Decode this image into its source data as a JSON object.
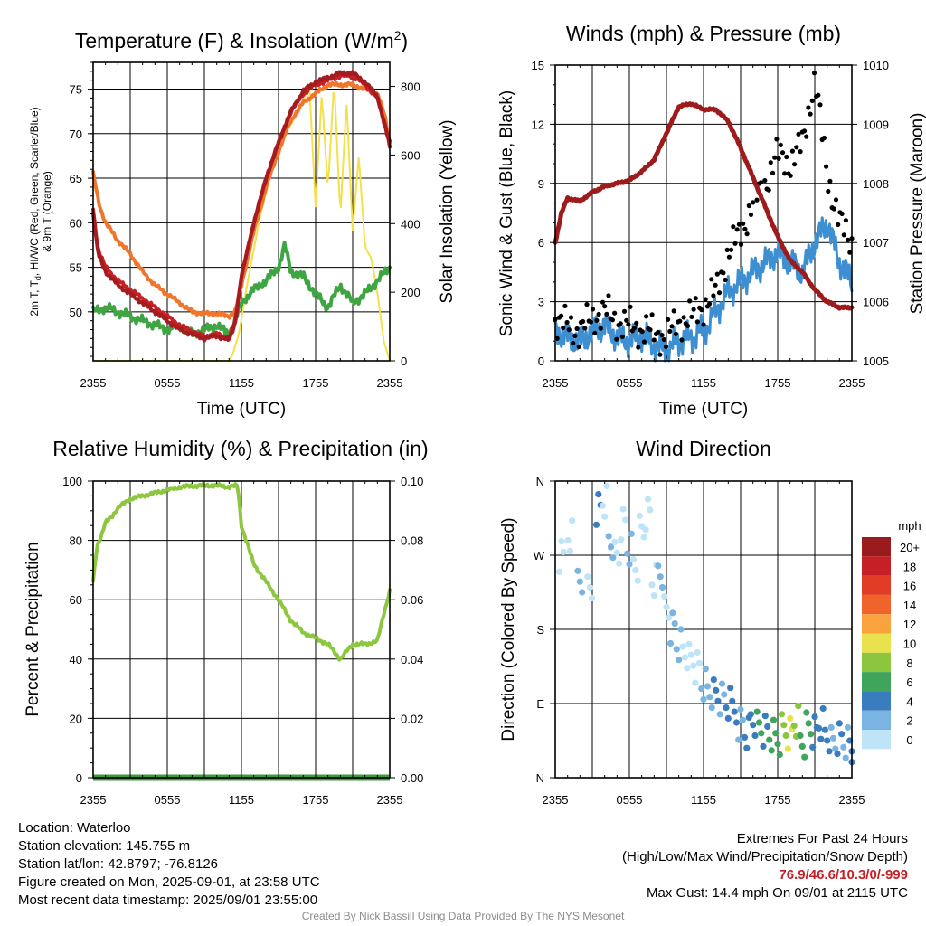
{
  "panels": {
    "temperature": {
      "title_main": "Temperature (F) & Insolation (W/m",
      "title_sup": "2",
      "title_end": ")",
      "y_left_label_line1": "2m T, T",
      "y_left_label_sub": "d",
      "y_left_label_line1b": ", HI/WC (Red, Green, Scarlet/Blue)",
      "y_left_label_line2": "& 9m T (Orange)",
      "y_right_label": "Solar Insolation (Yellow)",
      "x_label": "Time (UTC)"
    },
    "winds": {
      "title": "Winds (mph) & Pressure (mb)",
      "y_left_label": "Sonic Wind & Gust (Blue, Black)",
      "y_right_label": "Station Pressure (Maroon)",
      "x_label": "Time (UTC)"
    },
    "humidity": {
      "title": "Relative Humidity (%) & Precipitation (in)",
      "y_left_label": "Percent & Precipitation"
    },
    "direction": {
      "title": "Wind Direction",
      "y_left_label": "Direction (Colored By Speed)",
      "legend_unit": "mph",
      "legend_labels": [
        "20+",
        "18",
        "16",
        "14",
        "12",
        "10",
        "8",
        "6",
        "4",
        "2",
        "0"
      ],
      "legend_colors": [
        "#9a1b1e",
        "#c42026",
        "#e03c26",
        "#f0642c",
        "#f8a33d",
        "#e9e24e",
        "#8cc63f",
        "#3fa55b",
        "#3a7dbf",
        "#79b4e2",
        "#bfe3f7"
      ]
    }
  },
  "chart_data": [
    {
      "type": "line",
      "title": "Temperature (F) & Insolation (W/m2)",
      "xlabel": "Time (UTC)",
      "ylabel": "2m T, Td, HI/WC (Red, Green, Scarlet/Blue) & 9m T (Orange)",
      "y2label": "Solar Insolation (Yellow)",
      "x_ticks": [
        "2355",
        "0555",
        "1155",
        "1755",
        "2355"
      ],
      "x_hours": [
        0,
        24
      ],
      "ylim": [
        44.5,
        78
      ],
      "y_ticks": [
        50,
        55,
        60,
        65,
        70,
        75
      ],
      "y2lim": [
        0,
        870
      ],
      "y2_ticks": [
        0,
        200,
        400,
        600,
        800
      ],
      "series": [
        {
          "name": "2m T",
          "color": "#c42026",
          "axis": "left",
          "x": [
            0,
            0.4,
            1,
            2,
            3,
            4,
            5,
            6,
            7,
            8,
            9,
            10,
            11,
            11.5,
            12,
            13,
            14,
            15,
            16,
            17,
            18,
            19,
            20,
            21,
            22,
            23,
            23.6,
            24
          ],
          "values": [
            61.5,
            57,
            55,
            53.5,
            52.5,
            51.5,
            50.5,
            49.5,
            48.5,
            47.8,
            47.2,
            47.5,
            47,
            49,
            54,
            60,
            65,
            69,
            72.5,
            74.5,
            75.5,
            76,
            76.5,
            76.5,
            75.5,
            74,
            71,
            69
          ]
        },
        {
          "name": "9m T",
          "color": "#f0762c",
          "axis": "left",
          "x": [
            0,
            0.5,
            1,
            2,
            3,
            4,
            5,
            6,
            7,
            8,
            9,
            10,
            11,
            11.5,
            12,
            13,
            14,
            15,
            16,
            17,
            18,
            19,
            20,
            21,
            22,
            23,
            23.6,
            24
          ],
          "values": [
            65.5,
            62,
            60,
            58,
            56.5,
            54.5,
            53,
            52,
            51,
            50,
            49.8,
            49.8,
            49.5,
            50,
            53,
            59,
            64,
            68,
            71.5,
            73.5,
            74.5,
            75.5,
            75.5,
            75.5,
            75,
            74.5,
            72,
            69
          ]
        },
        {
          "name": "HI/WC",
          "color": "#a51c20",
          "axis": "left",
          "x": [
            0,
            0.4,
            1,
            2,
            3,
            4,
            5,
            6,
            7,
            8,
            9,
            10,
            11,
            11.5,
            12,
            13,
            14,
            15,
            16,
            17,
            18,
            19,
            20,
            21,
            22,
            23,
            23.6,
            24
          ],
          "values": [
            61,
            56.5,
            54.5,
            53,
            52,
            51,
            50,
            49,
            48,
            47.5,
            47,
            47.3,
            46.8,
            48.8,
            54,
            60,
            65,
            69,
            72.5,
            74.8,
            75.8,
            76.3,
            76.8,
            76.8,
            75.8,
            74.2,
            71,
            68.5
          ]
        },
        {
          "name": "2m Td",
          "color": "#3fa542",
          "axis": "left",
          "x": [
            0,
            1,
            2,
            3,
            4,
            5,
            6,
            7,
            8,
            9,
            10,
            11,
            11.5,
            12,
            13,
            14,
            15,
            15.5,
            16,
            17,
            18,
            19,
            20,
            21,
            22,
            23,
            24
          ],
          "values": [
            50,
            50.5,
            50,
            49.5,
            49,
            48.5,
            48,
            48.5,
            47.5,
            48,
            48.5,
            47.5,
            49,
            51,
            52.5,
            53.5,
            55,
            57.5,
            54.5,
            54,
            52,
            50.5,
            53,
            51,
            52,
            53.5,
            55
          ]
        },
        {
          "name": "Solar Insolation",
          "color": "#f3e04b",
          "axis": "right",
          "x": [
            0,
            11,
            11.3,
            11.8,
            12.5,
            13.5,
            14.5,
            15.5,
            16.5,
            17.5,
            18,
            18.5,
            19,
            19.5,
            20,
            20.5,
            21,
            21.5,
            22,
            22.5,
            23,
            23.5,
            24
          ],
          "values": [
            0,
            0,
            20,
            80,
            230,
            420,
            560,
            660,
            720,
            800,
            450,
            780,
            500,
            820,
            420,
            760,
            380,
            600,
            330,
            300,
            200,
            60,
            0
          ]
        }
      ]
    },
    {
      "type": "line",
      "title": "Winds (mph) & Pressure (mb)",
      "xlabel": "Time (UTC)",
      "ylabel": "Sonic Wind & Gust (Blue, Black)",
      "y2label": "Station Pressure (Maroon)",
      "x_ticks": [
        "2355",
        "0555",
        "1155",
        "1755",
        "2355"
      ],
      "x_hours": [
        0,
        24
      ],
      "ylim": [
        0,
        15
      ],
      "y_ticks": [
        0,
        3,
        6,
        9,
        12,
        15
      ],
      "y2lim": [
        1005,
        1010
      ],
      "y2_ticks": [
        1005,
        1006,
        1007,
        1008,
        1009,
        1010
      ],
      "series": [
        {
          "name": "Sonic Wind",
          "color": "#3d8fd1",
          "axis": "left",
          "x": [
            0,
            1,
            2,
            3,
            4,
            5,
            6,
            7,
            8,
            9,
            10,
            11,
            12,
            13,
            14,
            15,
            16,
            17,
            18,
            19,
            20,
            21,
            22,
            23,
            24
          ],
          "values": [
            1.5,
            1.2,
            1.0,
            1.5,
            1.8,
            1.2,
            1.0,
            1.3,
            0.8,
            0.5,
            1.0,
            1.2,
            1.5,
            2.5,
            3.5,
            4.0,
            4.5,
            5.0,
            5.5,
            5.0,
            4.5,
            6.0,
            7.0,
            5.0,
            4.0
          ]
        },
        {
          "name": "Gust",
          "color": "#000000",
          "axis": "left",
          "x": [
            0,
            1,
            2,
            3,
            4,
            5,
            6,
            7,
            8,
            9,
            10,
            11,
            12,
            13,
            14,
            15,
            16,
            17,
            18,
            19,
            20,
            21,
            22,
            23,
            24
          ],
          "values": [
            2.0,
            1.8,
            1.5,
            2.2,
            2.5,
            2.0,
            1.8,
            1.6,
            1.4,
            1.2,
            2.0,
            2.2,
            2.8,
            3.5,
            5.5,
            6.5,
            8.0,
            9.0,
            10.5,
            10.0,
            11.0,
            14.4,
            9.5,
            7.0,
            6.0
          ]
        },
        {
          "name": "Station Pressure",
          "color": "#9e1b1b",
          "axis": "right",
          "x": [
            0,
            0.5,
            1,
            2,
            3,
            4,
            5,
            6,
            7,
            8,
            9,
            10,
            11,
            12,
            13,
            14,
            15,
            16,
            17,
            18,
            19,
            20,
            21,
            22,
            23,
            24
          ],
          "values": [
            1007.0,
            1007.5,
            1007.75,
            1007.7,
            1007.85,
            1007.95,
            1008.0,
            1008.05,
            1008.2,
            1008.4,
            1008.85,
            1009.3,
            1009.35,
            1009.25,
            1009.25,
            1009.05,
            1008.6,
            1008.1,
            1007.6,
            1007.1,
            1006.7,
            1006.5,
            1006.2,
            1006.0,
            1005.9,
            1005.9
          ]
        }
      ]
    },
    {
      "type": "line",
      "title": "Relative Humidity (%) & Precipitation (in)",
      "ylabel": "Percent & Precipitation",
      "x_ticks": [
        "2355",
        "0555",
        "1155",
        "1755",
        "2355"
      ],
      "x_hours": [
        0,
        24
      ],
      "ylim": [
        0,
        100
      ],
      "y_ticks": [
        0,
        20,
        40,
        60,
        80,
        100
      ],
      "y2lim": [
        0,
        0.1
      ],
      "y2_ticks": [
        "0.00",
        "0.02",
        "0.04",
        "0.06",
        "0.08",
        "0.10"
      ],
      "series": [
        {
          "name": "Relative Humidity",
          "color": "#8dc63f",
          "axis": "left",
          "x": [
            0,
            0.3,
            0.7,
            1,
            1.5,
            2,
            3,
            4,
            5,
            6,
            7,
            8,
            9,
            10,
            11,
            11.7,
            12,
            13,
            14,
            15,
            16,
            17,
            18,
            19,
            20,
            21,
            22,
            23,
            23.5,
            24
          ],
          "values": [
            66,
            78,
            82,
            86,
            88,
            91,
            94,
            95,
            96,
            97,
            98,
            98.3,
            98.5,
            98.5,
            98,
            98.5,
            85,
            72,
            66,
            60,
            53,
            49,
            47,
            45,
            40,
            45,
            45,
            46,
            55,
            63
          ]
        },
        {
          "name": "Precipitation",
          "color": "#3f9a3f",
          "axis": "right",
          "x": [
            0,
            24
          ],
          "values": [
            0,
            0
          ]
        }
      ]
    },
    {
      "type": "scatter",
      "title": "Wind Direction",
      "ylabel": "Direction (Colored By Speed)",
      "x_ticks": [
        "2355",
        "0555",
        "1155",
        "1755",
        "2355"
      ],
      "x_hours": [
        0,
        24
      ],
      "y_ticks": [
        "N",
        "E",
        "S",
        "W",
        "N"
      ],
      "ylim": [
        0,
        360
      ],
      "legend_title": "mph",
      "series": [
        {
          "name": "Wind Direction",
          "x": [
            0.5,
            1.2,
            2.0,
            2.8,
            3.5,
            4.0,
            4.5,
            5.0,
            5.5,
            6.0,
            6.5,
            7.0,
            7.5,
            8.0,
            8.5,
            9.0,
            9.5,
            10.0,
            10.5,
            11.0,
            11.5,
            12.0,
            12.5,
            13.0,
            13.5,
            14.0,
            14.5,
            15.0,
            15.5,
            16.0,
            16.5,
            17.0,
            17.5,
            18.0,
            18.5,
            19.0,
            19.5,
            20.0,
            20.5,
            21.0,
            21.5,
            22.0,
            22.5,
            23.0,
            23.5,
            24.0
          ],
          "values": [
            275,
            300,
            250,
            230,
            330,
            340,
            290,
            270,
            310,
            280,
            260,
            300,
            320,
            240,
            250,
            200,
            180,
            160,
            150,
            140,
            130,
            110,
            100,
            95,
            90,
            85,
            80,
            70,
            60,
            75,
            65,
            60,
            55,
            50,
            60,
            55,
            70,
            45,
            60,
            55,
            65,
            50,
            40,
            45,
            40,
            35
          ],
          "speeds": [
            1,
            1,
            3,
            1,
            4,
            1,
            2,
            1,
            1,
            2,
            1,
            1,
            1,
            1,
            2,
            1,
            2,
            2,
            1,
            1,
            1,
            2,
            2,
            4,
            3,
            4,
            4,
            3,
            5,
            4,
            6,
            5,
            6,
            7,
            8,
            10,
            8,
            7,
            6,
            5,
            4,
            4,
            3,
            4,
            3,
            4
          ]
        }
      ]
    }
  ],
  "footer": {
    "location": "Location: Waterloo",
    "elevation": "Station elevation: 145.755 m",
    "latlon": "Station lat/lon: 42.8797; -76.8126",
    "created": "Figure created on Mon, 2025-09-01, at 23:58 UTC",
    "recent": "Most recent data timestamp: 2025/09/01 23:55:00",
    "extremes_title": "Extremes For Past 24 Hours",
    "extremes_subtitle": "(High/Low/Max Wind/Precipitation/Snow Depth)",
    "extremes_values": "76.9/46.6/10.3/0/-999",
    "max_gust": "Max Gust: 14.4 mph On 09/01 at 2115 UTC",
    "credit": "Created By Nick Bassill Using Data Provided By The NYS Mesonet"
  }
}
